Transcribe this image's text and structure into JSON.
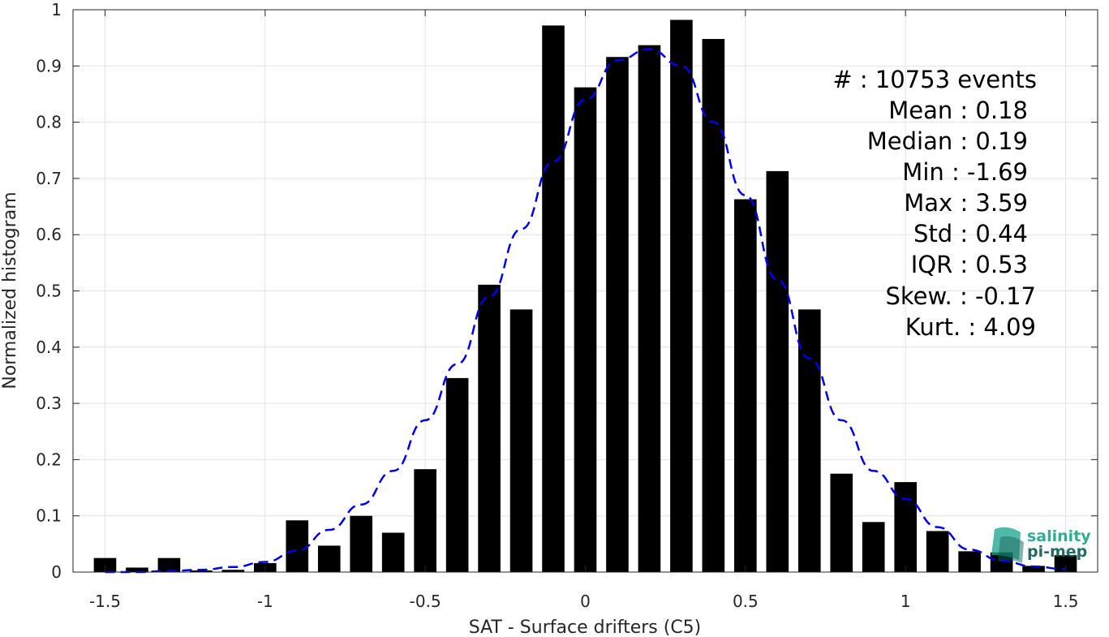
{
  "chart_data": {
    "type": "bar",
    "xlabel": "SAT - Surface drifters (C5)",
    "ylabel": "Normalized histogram",
    "xlim": [
      -1.6,
      1.6
    ],
    "ylim": [
      0,
      1
    ],
    "xticks": [
      "-1.5",
      "-1",
      "-0.5",
      "0",
      "0.5",
      "1",
      "1.5"
    ],
    "xtick_values": [
      -1.5,
      -1,
      -0.5,
      0,
      0.5,
      1,
      1.5
    ],
    "yticks": [
      "0",
      "0.1",
      "0.2",
      "0.3",
      "0.4",
      "0.5",
      "0.6",
      "0.7",
      "0.8",
      "0.9",
      "1"
    ],
    "ytick_values": [
      0,
      0.1,
      0.2,
      0.3,
      0.4,
      0.5,
      0.6,
      0.7,
      0.8,
      0.9,
      1
    ],
    "grid": true,
    "bar_color": "#000000",
    "bins": [
      -1.5,
      -1.4,
      -1.3,
      -1.2,
      -1.1,
      -1.0,
      -0.9,
      -0.8,
      -0.7,
      -0.6,
      -0.5,
      -0.4,
      -0.3,
      -0.2,
      -0.1,
      0.0,
      0.1,
      0.2,
      0.3,
      0.4,
      0.5,
      0.6,
      0.7,
      0.8,
      0.9,
      1.0,
      1.1,
      1.2,
      1.3,
      1.4,
      1.5
    ],
    "values": [
      0.025,
      0.008,
      0.025,
      0.003,
      0.004,
      0.016,
      0.092,
      0.047,
      0.1,
      0.07,
      0.183,
      0.345,
      0.511,
      0.467,
      0.972,
      0.862,
      0.916,
      0.937,
      0.982,
      0.948,
      0.663,
      0.713,
      0.467,
      0.175,
      0.089,
      0.16,
      0.073,
      0.037,
      0.035,
      0.011,
      0.03
    ],
    "fit_curve": {
      "style": "dashed",
      "color": "#0000ee",
      "x": [
        -1.5,
        -1.4,
        -1.3,
        -1.2,
        -1.1,
        -1.0,
        -0.9,
        -0.8,
        -0.7,
        -0.6,
        -0.5,
        -0.4,
        -0.3,
        -0.2,
        -0.1,
        0.0,
        0.1,
        0.2,
        0.3,
        0.4,
        0.5,
        0.6,
        0.7,
        0.8,
        0.9,
        1.0,
        1.1,
        1.2,
        1.3,
        1.4,
        1.5
      ],
      "y": [
        0.0,
        0.0,
        0.002,
        0.004,
        0.009,
        0.018,
        0.038,
        0.075,
        0.12,
        0.18,
        0.27,
        0.37,
        0.49,
        0.61,
        0.73,
        0.84,
        0.91,
        0.93,
        0.9,
        0.8,
        0.67,
        0.52,
        0.38,
        0.27,
        0.18,
        0.13,
        0.08,
        0.04,
        0.02,
        0.01,
        0.005
      ]
    }
  },
  "stats": [
    "#  : 10753 events",
    "Mean : 0.18",
    "Median : 0.19",
    "Min : -1.69",
    "Max : 3.59",
    "Std : 0.44",
    "IQR : 0.53",
    "Skew. : -0.17",
    "Kurt. : 4.09"
  ],
  "logo": {
    "line1": "salinity",
    "line2": "pi-mep",
    "color_main": "#1aa58a",
    "color_dark": "#0c5c55"
  }
}
